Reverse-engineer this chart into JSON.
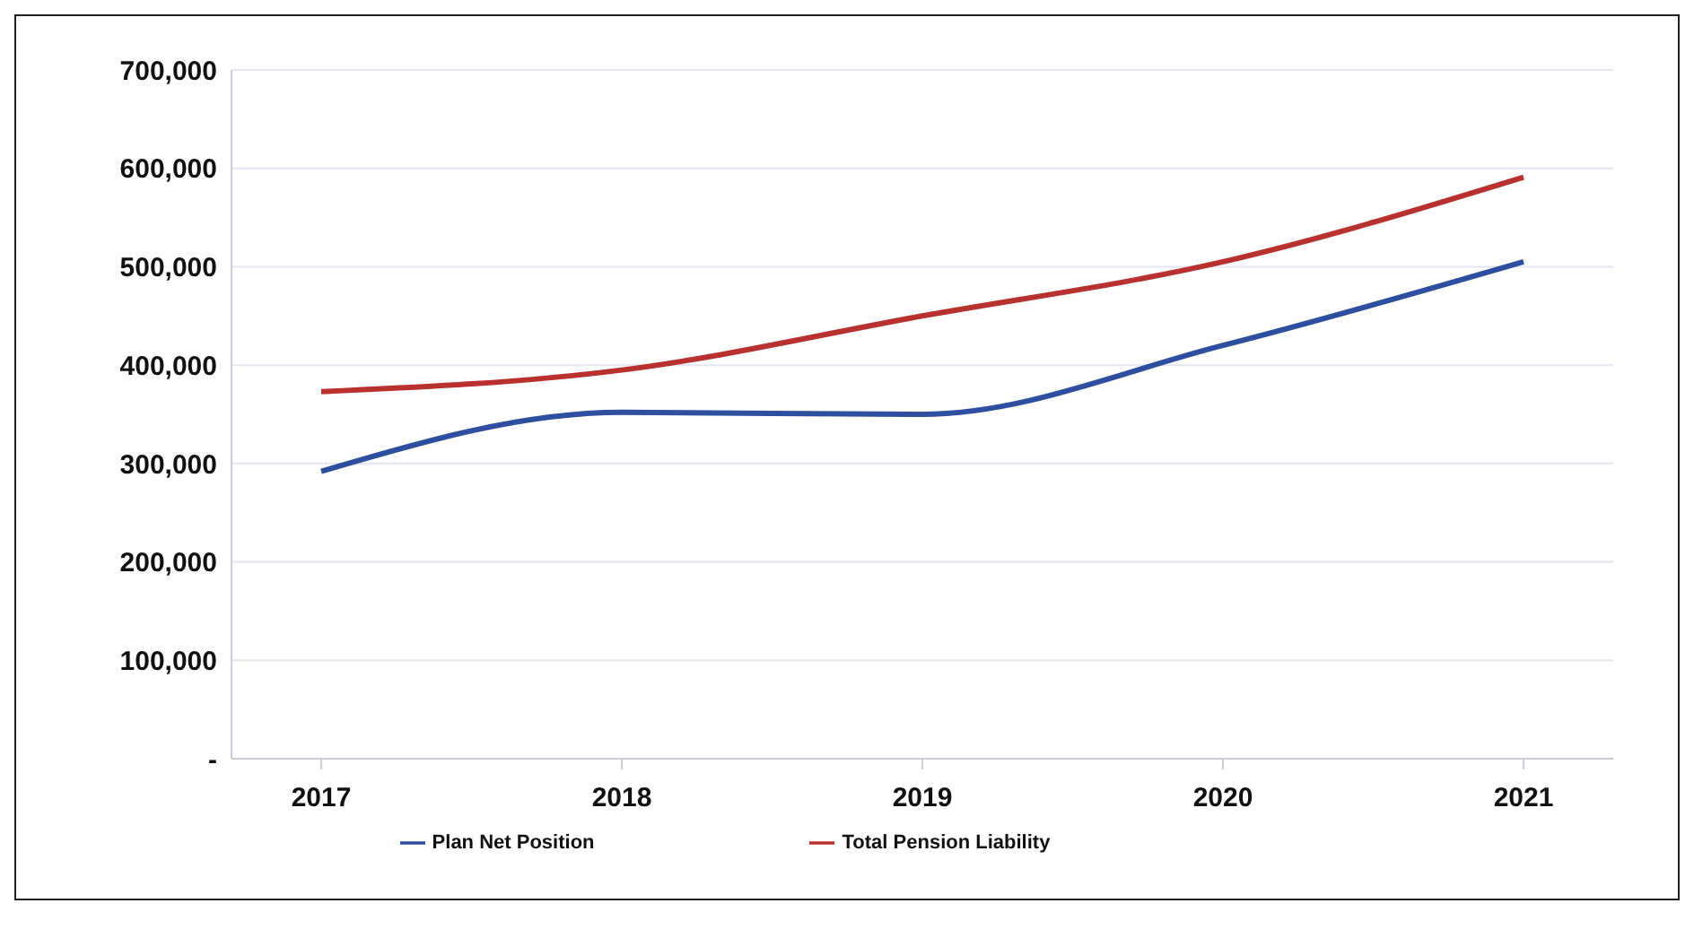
{
  "chart_data": {
    "type": "line",
    "categories": [
      "2017",
      "2018",
      "2019",
      "2020",
      "2021"
    ],
    "series": [
      {
        "name": "Plan Net Position",
        "color": "#2e4fa0",
        "values": [
          292000,
          352000,
          350000,
          420000,
          505000
        ]
      },
      {
        "name": "Total Pension Liability",
        "color": "#b8312f",
        "values": [
          373000,
          395000,
          450000,
          505000,
          591000
        ]
      }
    ],
    "ylim": [
      0,
      700000
    ],
    "yticks": [
      {
        "value": 0,
        "label": "-"
      },
      {
        "value": 100000,
        "label": "100,000"
      },
      {
        "value": 200000,
        "label": "200,000"
      },
      {
        "value": 300000,
        "label": "300,000"
      },
      {
        "value": 400000,
        "label": "400,000"
      },
      {
        "value": 500000,
        "label": "500,000"
      },
      {
        "value": 600000,
        "label": "600,000"
      },
      {
        "value": 700000,
        "label": "700,000"
      }
    ],
    "grid": "y",
    "legend": "bottom",
    "marker": "none",
    "line_style": "solid"
  }
}
